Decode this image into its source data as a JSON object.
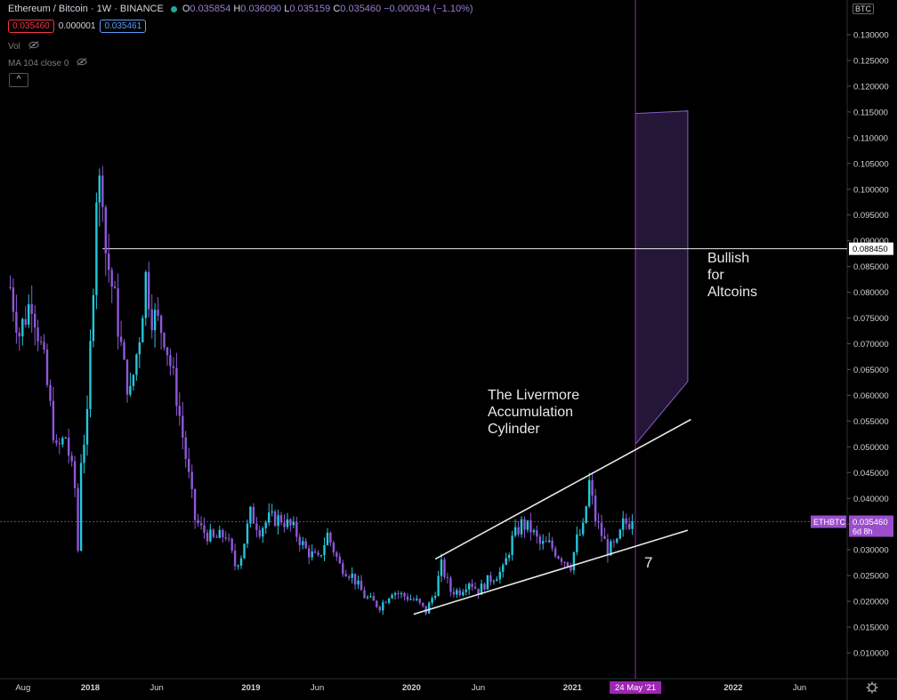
{
  "header": {
    "symbol": "Ethereum / Bitcoin · 1W · BINANCE",
    "o_label": "O",
    "o_value": "0.035854",
    "h_label": "H",
    "h_value": "0.036090",
    "l_label": "L",
    "l_value": "0.035159",
    "c_label": "C",
    "c_value": "0.035460",
    "change": "−0.000394 (−1.10%)",
    "sell_price": "0.035460",
    "spread": "0.000001",
    "buy_price": "0.035461",
    "vol_label": "Vol",
    "ma_label": "MA 104 close 0",
    "collapse_icon": "chevron-up-icon",
    "currency_badge": "BTC"
  },
  "colors": {
    "background": "#000000",
    "candle_up": "#26c6da",
    "candle_down": "#8e58d6",
    "annotation": "#e8e8e8",
    "projection_fill": "#2a1a40",
    "projection_stroke": "#8a5cc9",
    "vertical_line": "#9c27b0",
    "last_price_tag": "#9c4dcc"
  },
  "chart_data": {
    "type": "candlestick",
    "y_axis": {
      "scale": "linear",
      "range": [
        0.005,
        0.135
      ],
      "ticks": [
        "0.130000",
        "0.125000",
        "0.120000",
        "0.115000",
        "0.110000",
        "0.105000",
        "0.100000",
        "0.095000",
        "0.090000",
        "0.085000",
        "0.080000",
        "0.075000",
        "0.070000",
        "0.065000",
        "0.060000",
        "0.055000",
        "0.050000",
        "0.045000",
        "0.040000",
        "0.035000",
        "0.030000",
        "0.025000",
        "0.020000",
        "0.015000",
        "0.010000"
      ]
    },
    "x_axis": {
      "range": [
        "2017-06-26",
        "2022-09-01"
      ],
      "ticks": [
        {
          "date": "2017-08-01",
          "label": "Aug",
          "bold": false
        },
        {
          "date": "2018-01-01",
          "label": "2018",
          "bold": true
        },
        {
          "date": "2018-06-01",
          "label": "Jun",
          "bold": false
        },
        {
          "date": "2019-01-01",
          "label": "2019",
          "bold": true
        },
        {
          "date": "2019-06-01",
          "label": "Jun",
          "bold": false
        },
        {
          "date": "2020-01-01",
          "label": "2020",
          "bold": true
        },
        {
          "date": "2020-06-01",
          "label": "Jun",
          "bold": false
        },
        {
          "date": "2021-01-01",
          "label": "2021",
          "bold": true
        },
        {
          "date": "2022-01-01",
          "label": "2022",
          "bold": true
        },
        {
          "date": "2022-06-01",
          "label": "Jun",
          "bold": false
        }
      ],
      "highlight": {
        "date": "2021-05-24",
        "label": "24 May '21"
      }
    },
    "series": [
      {
        "close_path": [
          [
            "2017-07-03",
            0.081
          ],
          [
            "2017-07-24",
            0.072
          ],
          [
            "2017-08-21",
            0.079
          ],
          [
            "2017-09-18",
            0.066
          ],
          [
            "2017-10-16",
            0.049
          ],
          [
            "2017-11-06",
            0.052
          ],
          [
            "2017-11-27",
            0.042
          ],
          [
            "2017-12-04",
            0.03
          ],
          [
            "2017-12-11",
            0.048
          ],
          [
            "2017-12-25",
            0.055
          ],
          [
            "2018-01-08",
            0.083
          ],
          [
            "2018-01-15",
            0.1
          ],
          [
            "2018-01-29",
            0.101
          ],
          [
            "2018-02-05",
            0.088
          ],
          [
            "2018-02-26",
            0.078
          ],
          [
            "2018-03-19",
            0.065
          ],
          [
            "2018-04-02",
            0.06
          ],
          [
            "2018-04-23",
            0.072
          ],
          [
            "2018-05-07",
            0.083
          ],
          [
            "2018-05-21",
            0.076
          ],
          [
            "2018-06-18",
            0.072
          ],
          [
            "2018-07-16",
            0.06
          ],
          [
            "2018-08-06",
            0.048
          ],
          [
            "2018-08-27",
            0.036
          ],
          [
            "2018-09-10",
            0.034
          ],
          [
            "2018-10-08",
            0.032
          ],
          [
            "2018-11-05",
            0.033
          ],
          [
            "2018-11-26",
            0.027
          ],
          [
            "2018-12-10",
            0.029
          ],
          [
            "2018-12-31",
            0.037
          ],
          [
            "2019-01-21",
            0.034
          ],
          [
            "2019-02-11",
            0.036
          ],
          [
            "2019-03-11",
            0.036
          ],
          [
            "2019-04-08",
            0.034
          ],
          [
            "2019-05-06",
            0.03
          ],
          [
            "2019-06-03",
            0.028
          ],
          [
            "2019-06-24",
            0.033
          ],
          [
            "2019-07-22",
            0.027
          ],
          [
            "2019-08-19",
            0.025
          ],
          [
            "2019-09-16",
            0.021
          ],
          [
            "2019-10-21",
            0.019
          ],
          [
            "2019-11-18",
            0.022
          ],
          [
            "2019-12-16",
            0.021
          ],
          [
            "2020-01-13",
            0.02
          ],
          [
            "2020-02-03",
            0.018
          ],
          [
            "2020-02-24",
            0.022
          ],
          [
            "2020-03-09",
            0.027
          ],
          [
            "2020-03-30",
            0.022
          ],
          [
            "2020-04-20",
            0.022
          ],
          [
            "2020-05-11",
            0.024
          ],
          [
            "2020-06-01",
            0.022
          ],
          [
            "2020-06-22",
            0.024
          ],
          [
            "2020-07-27",
            0.026
          ],
          [
            "2020-08-17",
            0.032
          ],
          [
            "2020-09-07",
            0.035
          ],
          [
            "2020-09-28",
            0.034
          ],
          [
            "2020-10-19",
            0.031
          ],
          [
            "2020-11-09",
            0.031
          ],
          [
            "2020-11-30",
            0.029
          ],
          [
            "2020-12-28",
            0.027
          ],
          [
            "2021-01-11",
            0.032
          ],
          [
            "2021-01-25",
            0.034
          ],
          [
            "2021-02-08",
            0.043
          ],
          [
            "2021-02-22",
            0.036
          ],
          [
            "2021-03-08",
            0.033
          ],
          [
            "2021-03-22",
            0.03
          ],
          [
            "2021-04-12",
            0.031
          ],
          [
            "2021-04-26",
            0.035
          ],
          [
            "2021-05-17",
            0.0355
          ]
        ],
        "last": {
          "label": "ETHBTC",
          "value": "0.035460",
          "countdown": "6d 8h"
        }
      }
    ],
    "annotations": {
      "hline": {
        "value": 0.08845,
        "from": "2018-01-29",
        "label": "0.088450"
      },
      "upper_trend": {
        "from": [
          "2020-02-24",
          0.0282
        ],
        "to": [
          "2021-09-27",
          0.0553
        ]
      },
      "lower_trend": {
        "from": [
          "2020-01-06",
          0.0175
        ],
        "to": [
          "2021-09-20",
          0.0338
        ]
      },
      "projection_box": {
        "points": [
          [
            "2021-05-24",
            0.1147
          ],
          [
            "2021-09-20",
            0.1152
          ],
          [
            "2021-09-20",
            0.0627
          ],
          [
            "2021-05-24",
            0.0505
          ]
        ]
      },
      "vline": {
        "date": "2021-05-24"
      },
      "texts": [
        {
          "id": "livermore",
          "lines": [
            "The Livermore",
            "Accumulation",
            "Cylinder"
          ]
        },
        {
          "id": "bullish",
          "lines": [
            "Bullish",
            "for",
            "Altcoins"
          ]
        },
        {
          "id": "seven",
          "lines": [
            "7"
          ]
        }
      ]
    }
  }
}
